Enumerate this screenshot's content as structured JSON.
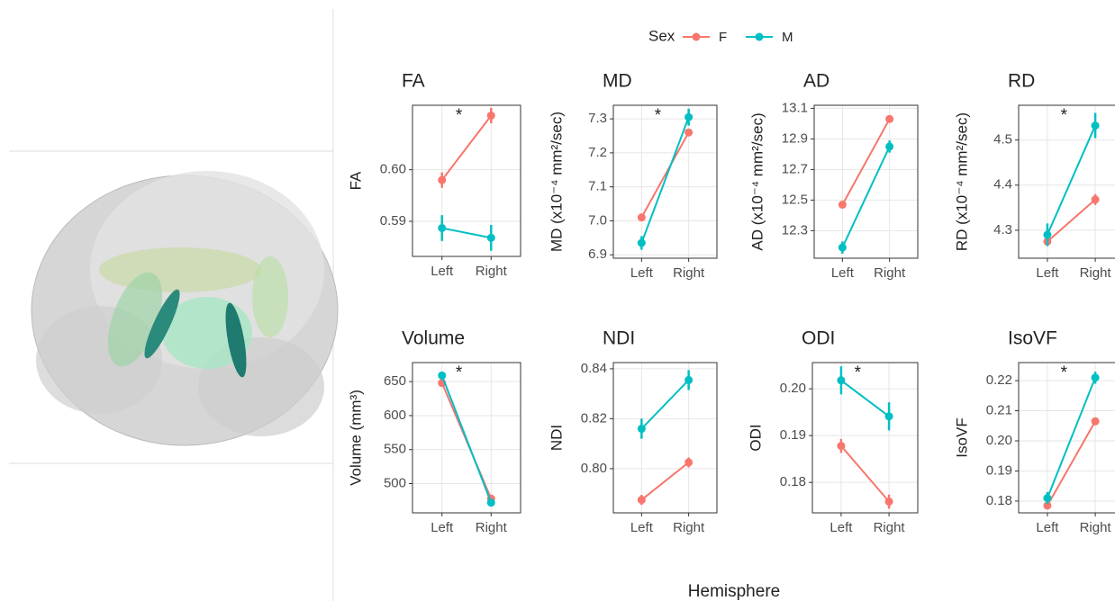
{
  "figure": {
    "legend_title": "Sex",
    "xlabel": "Hemisphere"
  },
  "chart_data": [
    {
      "type": "line",
      "title": "FA",
      "ylabel": "FA",
      "categories": [
        "Left",
        "Right"
      ],
      "series": [
        {
          "name": "F",
          "color": "#F8766D",
          "values": [
            0.598,
            0.6105
          ],
          "errors": [
            0.0015,
            0.0015
          ]
        },
        {
          "name": "M",
          "color": "#00BFC4",
          "values": [
            0.5887,
            0.5868
          ],
          "errors": [
            0.0025,
            0.0025
          ]
        }
      ],
      "ylim": [
        0.5832,
        0.6125
      ],
      "yticks": [
        0.59,
        {
          "value": 0.6,
          "label": "0.60"
        }
      ],
      "grid": true,
      "annotation": "*"
    },
    {
      "type": "line",
      "title": "MD",
      "ylabel": "MD (x10⁻⁴  mm²/sec)",
      "categories": [
        "Left",
        "Right"
      ],
      "series": [
        {
          "name": "F",
          "color": "#F8766D",
          "values": [
            7.01,
            7.26
          ],
          "errors": [
            0.01,
            0.01
          ]
        },
        {
          "name": "M",
          "color": "#00BFC4",
          "values": [
            6.935,
            7.305
          ],
          "errors": [
            0.02,
            0.025
          ]
        }
      ],
      "ylim": [
        6.89,
        7.34
      ],
      "yticks": [
        6.9,
        {
          "value": 7.0,
          "label": "7.0"
        },
        7.1,
        7.2,
        7.3
      ],
      "grid": true,
      "annotation": "*"
    },
    {
      "type": "line",
      "title": "AD",
      "ylabel": "AD (x10⁻⁴  mm²/sec)",
      "categories": [
        "Left",
        "Right"
      ],
      "series": [
        {
          "name": "F",
          "color": "#F8766D",
          "values": [
            12.47,
            13.03
          ],
          "errors": [
            0.02,
            0.02
          ]
        },
        {
          "name": "M",
          "color": "#00BFC4",
          "values": [
            12.19,
            12.85
          ],
          "errors": [
            0.04,
            0.04
          ]
        }
      ],
      "ylim": [
        12.12,
        13.12
      ],
      "yticks": [
        12.3,
        12.5,
        12.7,
        12.9,
        13.1
      ],
      "grid": true
    },
    {
      "type": "line",
      "title": "RD",
      "ylabel": "RD (x10⁻⁴  mm²/sec)",
      "categories": [
        "Left",
        "Right"
      ],
      "series": [
        {
          "name": "F",
          "color": "#F8766D",
          "values": [
            4.275,
            4.368
          ],
          "errors": [
            0.01,
            0.012
          ]
        },
        {
          "name": "M",
          "color": "#00BFC4",
          "values": [
            4.29,
            4.532
          ],
          "errors": [
            0.025,
            0.028
          ]
        }
      ],
      "ylim": [
        4.238,
        4.577
      ],
      "yticks": [
        4.3,
        4.4,
        4.5
      ],
      "grid": true,
      "annotation": "*"
    },
    {
      "type": "line",
      "title": "Volume",
      "ylabel": "Volume (mm³)",
      "categories": [
        "Left",
        "Right"
      ],
      "series": [
        {
          "name": "F",
          "color": "#F8766D",
          "values": [
            648,
            478
          ],
          "errors": [
            5,
            4
          ]
        },
        {
          "name": "M",
          "color": "#00BFC4",
          "values": [
            659,
            472
          ],
          "errors": [
            5,
            4
          ]
        }
      ],
      "ylim": [
        457,
        678
      ],
      "yticks": [
        500,
        550,
        600,
        650
      ],
      "grid": true,
      "annotation": "*"
    },
    {
      "type": "line",
      "title": "NDI",
      "ylabel": "NDI",
      "categories": [
        "Left",
        "Right"
      ],
      "series": [
        {
          "name": "F",
          "color": "#F8766D",
          "values": [
            0.7875,
            0.8025
          ],
          "errors": [
            0.002,
            0.002
          ]
        },
        {
          "name": "M",
          "color": "#00BFC4",
          "values": [
            0.816,
            0.8355
          ],
          "errors": [
            0.004,
            0.004
          ]
        }
      ],
      "ylim": [
        0.7823,
        0.8425
      ],
      "yticks": [
        {
          "value": 0.8,
          "label": "0.80"
        },
        0.82,
        0.84
      ],
      "grid": true
    },
    {
      "type": "line",
      "title": "ODI",
      "ylabel": "ODI",
      "categories": [
        "Left",
        "Right"
      ],
      "series": [
        {
          "name": "F",
          "color": "#F8766D",
          "values": [
            0.1878,
            0.1759
          ],
          "errors": [
            0.0015,
            0.0015
          ]
        },
        {
          "name": "M",
          "color": "#00BFC4",
          "values": [
            0.2018,
            0.1941
          ],
          "errors": [
            0.003,
            0.003
          ]
        }
      ],
      "ylim": [
        0.1735,
        0.2056
      ],
      "yticks": [
        0.18,
        0.19,
        {
          "value": 0.2,
          "label": "0.20"
        }
      ],
      "grid": true,
      "annotation": "*"
    },
    {
      "type": "line",
      "title": "IsoVF",
      "ylabel": "IsoVF",
      "categories": [
        "Left",
        "Right"
      ],
      "series": [
        {
          "name": "F",
          "color": "#F8766D",
          "values": [
            0.1785,
            0.2065
          ],
          "errors": [
            0.001,
            0.001
          ]
        },
        {
          "name": "M",
          "color": "#00BFC4",
          "values": [
            0.181,
            0.221
          ],
          "errors": [
            0.002,
            0.002
          ]
        }
      ],
      "ylim": [
        0.1761,
        0.226
      ],
      "yticks": [
        0.18,
        0.19,
        {
          "value": 0.2,
          "label": "0.20"
        },
        0.21,
        0.22
      ],
      "grid": true,
      "annotation": "*"
    }
  ]
}
